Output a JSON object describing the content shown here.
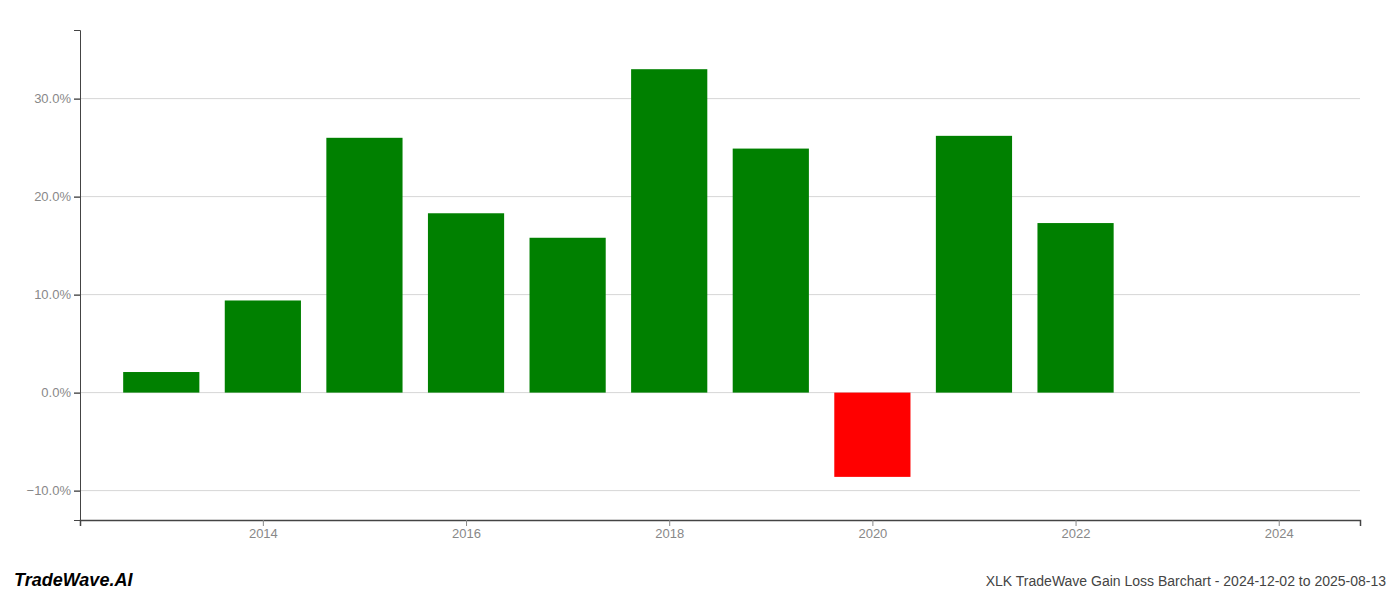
{
  "chart_data": {
    "type": "bar",
    "title": "XLK TradeWave Gain Loss Barchart - 2024-12-02 to 2025-08-13",
    "annotations": [
      "TradeWave.AI"
    ],
    "x": [
      2013,
      2014,
      2015,
      2016,
      2017,
      2018,
      2019,
      2020,
      2021,
      2022,
      2023
    ],
    "values": [
      0.021,
      0.094,
      0.26,
      0.183,
      0.158,
      0.33,
      0.249,
      -0.086,
      0.262,
      0.173,
      0.0
    ],
    "colors": [
      "#008000",
      "#008000",
      "#008000",
      "#008000",
      "#008000",
      "#008000",
      "#008000",
      "#ff0000",
      "#008000",
      "#008000",
      "#008000"
    ],
    "xlim": [
      2012.2,
      2024.8
    ],
    "xticks": [
      2014,
      2016,
      2018,
      2020,
      2022,
      2024
    ],
    "ylim": [
      -0.13,
      0.37
    ],
    "yticks": [
      {
        "value": -0.1,
        "label": "−10.0%"
      },
      {
        "value": 0.0,
        "label": "0.0%"
      },
      {
        "value": 0.1,
        "label": "10.0%"
      },
      {
        "value": 0.2,
        "label": "20.0%"
      },
      {
        "value": 0.3,
        "label": "30.0%"
      }
    ],
    "grid": true
  }
}
